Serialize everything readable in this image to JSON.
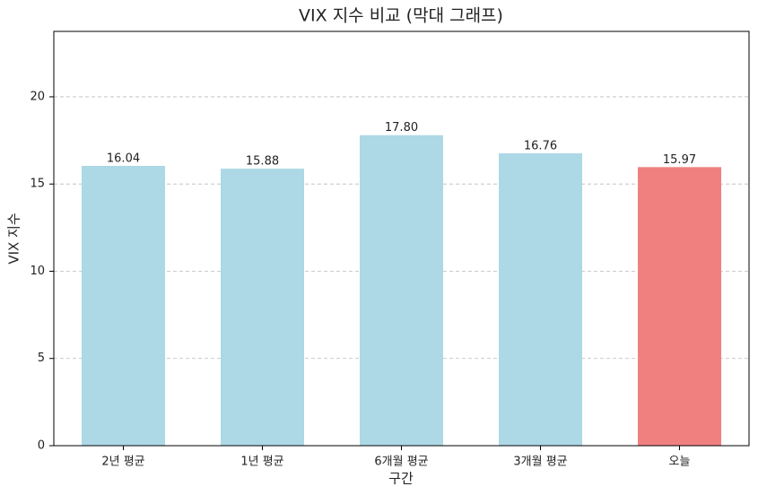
{
  "chart_data": {
    "type": "bar",
    "title": "VIX 지수 비교 (막대 그래프)",
    "x_label": "구간",
    "y_label": "VIX 지수",
    "categories": [
      "2년 평균",
      "1년 평균",
      "6개월 평균",
      "3개월 평균",
      "오늘"
    ],
    "values": [
      16.04,
      15.88,
      17.8,
      16.76,
      15.97
    ],
    "value_labels": [
      "16.04",
      "15.88",
      "17.80",
      "16.76",
      "15.97"
    ],
    "colors": [
      "#add8e6",
      "#add8e6",
      "#add8e6",
      "#add8e6",
      "#f08080"
    ],
    "ylim": [
      0,
      23.75
    ],
    "yticks": [
      0,
      5,
      10,
      15,
      20
    ],
    "grid": true
  }
}
